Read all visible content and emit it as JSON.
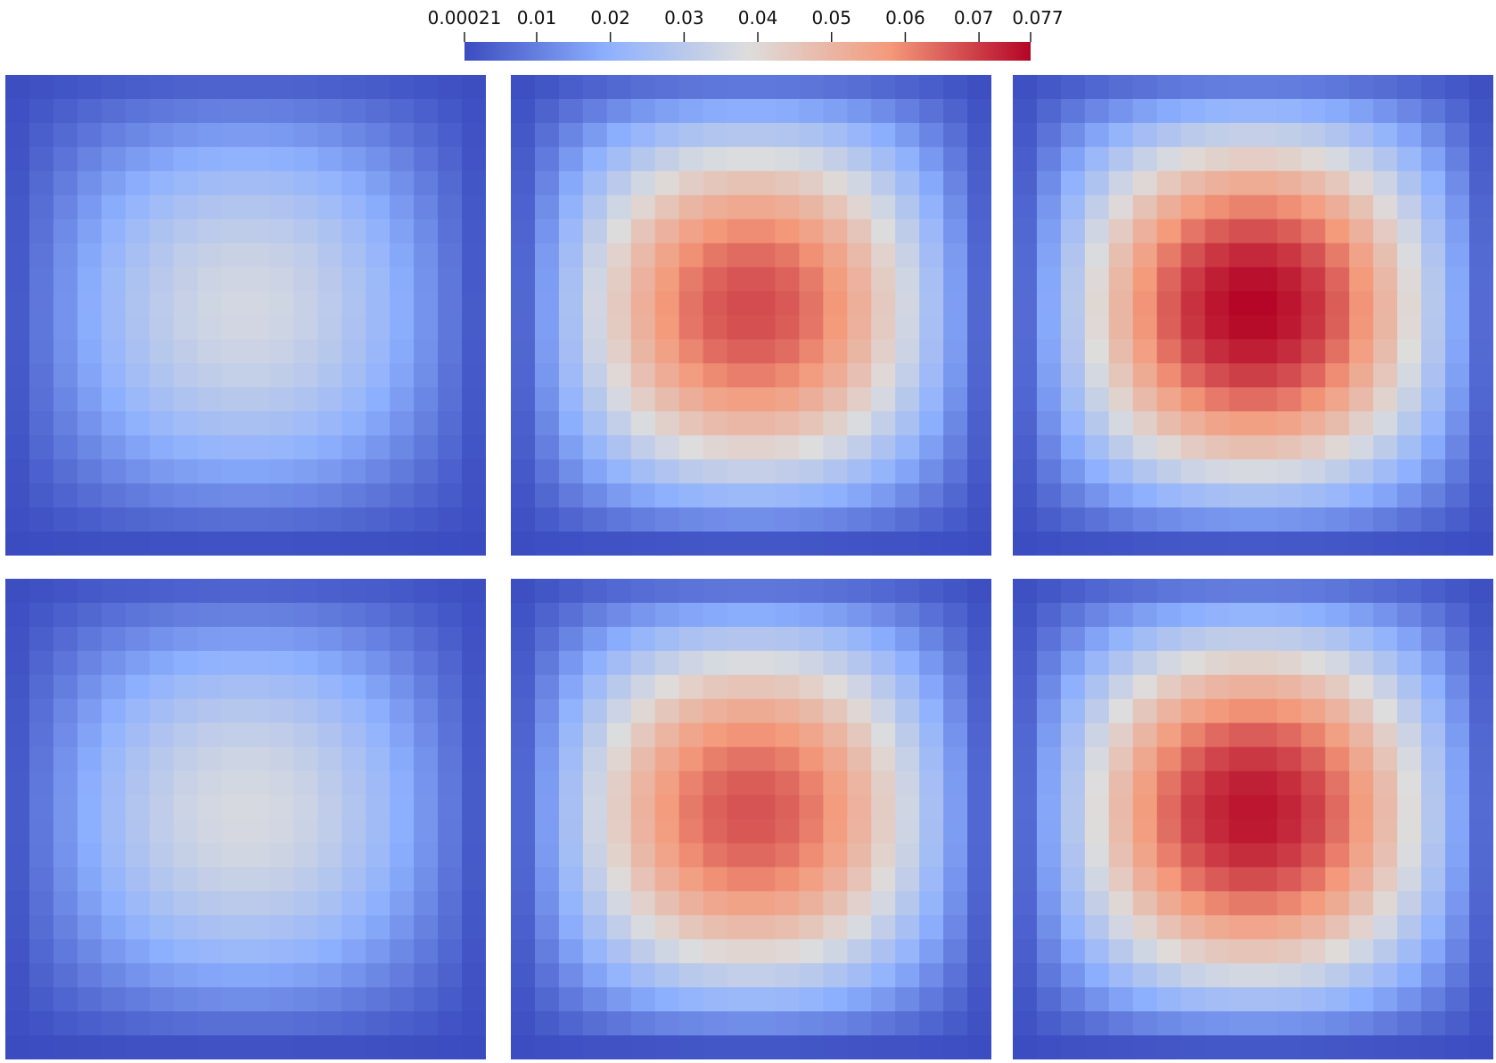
{
  "chart_data": {
    "type": "heatmap",
    "title": "",
    "colorbar": {
      "min": 0.00021,
      "max": 0.077,
      "ticks": [
        0.00021,
        0.01,
        0.02,
        0.03,
        0.04,
        0.05,
        0.06,
        0.07,
        0.077
      ],
      "tick_labels": [
        "0.00021",
        "0.01",
        "0.02",
        "0.03",
        "0.04",
        "0.05",
        "0.06",
        "0.07",
        "0.077"
      ],
      "colormap": "cool-to-warm",
      "colors": [
        "#3b4cc0",
        "#8db0fe",
        "#dddddd",
        "#f49a7b",
        "#b40426"
      ]
    },
    "grid_size": 20,
    "layout": {
      "rows": 2,
      "cols": 3
    },
    "panels": [
      {
        "row": 1,
        "col": 1,
        "peak": 0.036
      },
      {
        "row": 1,
        "col": 2,
        "peak": 0.068
      },
      {
        "row": 1,
        "col": 3,
        "peak": 0.077
      },
      {
        "row": 2,
        "col": 1,
        "peak": 0.037
      },
      {
        "row": 2,
        "col": 2,
        "peak": 0.067
      },
      {
        "row": 2,
        "col": 3,
        "peak": 0.075
      }
    ]
  }
}
